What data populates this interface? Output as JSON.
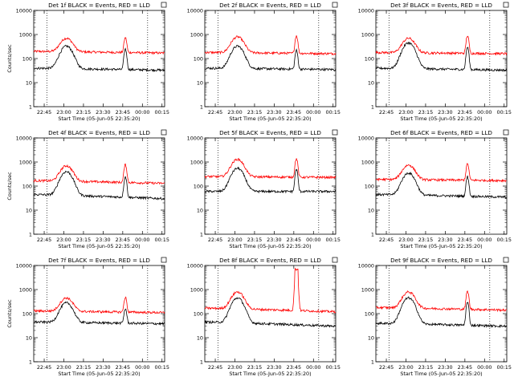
{
  "chart_data": {
    "type": "line",
    "figure_title": "",
    "colors": {
      "events": "#000000",
      "lld": "#ff0000",
      "background": "#ffffff"
    },
    "legend": {
      "events_label": "BLACK = Events",
      "lld_label": "RED = LLD"
    },
    "xlabel": "Start Time (05-Jun-05 22:35:20)",
    "ylabel": "Counts/sec",
    "xticks": [
      "22:45",
      "23:00",
      "23:15",
      "23:30",
      "23:45",
      "00:00",
      "00:15"
    ],
    "yticks": [
      "1",
      "10",
      "100",
      "1000",
      "10000"
    ],
    "x_start_min": 0,
    "x_range_minutes": [
      0,
      100
    ],
    "ylim": [
      1,
      10000
    ],
    "yscale": "log",
    "panels": [
      {
        "title": "Det 1f BLACK = Events, RED = LLD",
        "ylabel": "Counts/sec",
        "xlabel": "Start Time (05-Jun-05 22:35:20)",
        "events": {
          "base": 40,
          "peak1": 330,
          "peak1_t": 25,
          "peak2": 250,
          "peak2_t": 70,
          "tail": 33
        },
        "lld": {
          "base": 200,
          "peak1": 700,
          "peak1_t": 25,
          "peak2": 750,
          "peak2_t": 70,
          "tail": 170
        },
        "dotted_verticals_min": [
          10,
          87
        ]
      },
      {
        "title": "Det 2f BLACK = Events, RED = LLD",
        "ylabel": "",
        "xlabel": "Start Time (05-Jun-05 22:35:20)",
        "events": {
          "base": 40,
          "peak1": 330,
          "peak1_t": 25,
          "peak2": 220,
          "peak2_t": 70,
          "tail": 35
        },
        "lld": {
          "base": 180,
          "peak1": 800,
          "peak1_t": 25,
          "peak2": 900,
          "peak2_t": 70,
          "tail": 160
        },
        "dotted_verticals_min": [
          10,
          87
        ]
      },
      {
        "title": "Det 3f BLACK = Events, RED = LLD",
        "ylabel": "",
        "xlabel": "Start Time (05-Jun-05 22:35:20)",
        "events": {
          "base": 40,
          "peak1": 450,
          "peak1_t": 25,
          "peak2": 300,
          "peak2_t": 70,
          "tail": 33
        },
        "lld": {
          "base": 180,
          "peak1": 700,
          "peak1_t": 25,
          "peak2": 900,
          "peak2_t": 70,
          "tail": 160
        },
        "dotted_verticals_min": [
          10,
          87
        ]
      },
      {
        "title": "Det 4f BLACK = Events, RED = LLD",
        "ylabel": "Counts/sec",
        "xlabel": "Start Time (05-Jun-05 22:35:20)",
        "events": {
          "base": 45,
          "peak1": 400,
          "peak1_t": 25,
          "peak2": 250,
          "peak2_t": 70,
          "tail": 30
        },
        "lld": {
          "base": 170,
          "peak1": 700,
          "peak1_t": 25,
          "peak2": 800,
          "peak2_t": 70,
          "tail": 130
        },
        "dotted_verticals_min": [
          10,
          87
        ]
      },
      {
        "title": "Det 5f BLACK = Events, RED = LLD",
        "ylabel": "",
        "xlabel": "Start Time (05-Jun-05 22:35:20)",
        "events": {
          "base": 60,
          "peak1": 550,
          "peak1_t": 25,
          "peak2": 500,
          "peak2_t": 70,
          "tail": 60
        },
        "lld": {
          "base": 250,
          "peak1": 1300,
          "peak1_t": 25,
          "peak2": 1400,
          "peak2_t": 70,
          "tail": 230
        },
        "dotted_verticals_min": [
          10,
          87
        ]
      },
      {
        "title": "Det 6f BLACK = Events, RED = LLD",
        "ylabel": "",
        "xlabel": "Start Time (05-Jun-05 22:35:20)",
        "events": {
          "base": 45,
          "peak1": 350,
          "peak1_t": 25,
          "peak2": 250,
          "peak2_t": 70,
          "tail": 35
        },
        "lld": {
          "base": 190,
          "peak1": 750,
          "peak1_t": 25,
          "peak2": 850,
          "peak2_t": 70,
          "tail": 170
        },
        "dotted_verticals_min": [
          10,
          87
        ]
      },
      {
        "title": "Det 7f BLACK = Events, RED = LLD",
        "ylabel": "Counts/sec",
        "xlabel": "Start Time (05-Jun-05 22:35:20)",
        "events": {
          "base": 45,
          "peak1": 280,
          "peak1_t": 25,
          "peak2": 160,
          "peak2_t": 70,
          "tail": 38
        },
        "lld": {
          "base": 130,
          "peak1": 450,
          "peak1_t": 25,
          "peak2": 480,
          "peak2_t": 70,
          "tail": 110
        },
        "dotted_verticals_min": [
          10,
          87
        ]
      },
      {
        "title": "Det 8f BLACK = Events, RED = LLD",
        "ylabel": "",
        "xlabel": "Start Time (05-Jun-05 22:35:20)",
        "events": {
          "base": 45,
          "peak1": 450,
          "peak1_t": 25,
          "peak2": 0,
          "peak2_t": 70,
          "tail": 30
        },
        "lld": {
          "base": 170,
          "peak1": 800,
          "peak1_t": 25,
          "peak2": 7000,
          "peak2_t": 70,
          "tail": 120
        },
        "dotted_verticals_min": [
          10,
          87
        ]
      },
      {
        "title": "Det 9f BLACK = Events, RED = LLD",
        "ylabel": "",
        "xlabel": "Start Time (05-Jun-05 22:35:20)",
        "events": {
          "base": 40,
          "peak1": 450,
          "peak1_t": 25,
          "peak2": 300,
          "peak2_t": 70,
          "tail": 30
        },
        "lld": {
          "base": 180,
          "peak1": 800,
          "peak1_t": 25,
          "peak2": 850,
          "peak2_t": 70,
          "tail": 140
        },
        "dotted_verticals_min": [
          10,
          87
        ]
      }
    ]
  }
}
